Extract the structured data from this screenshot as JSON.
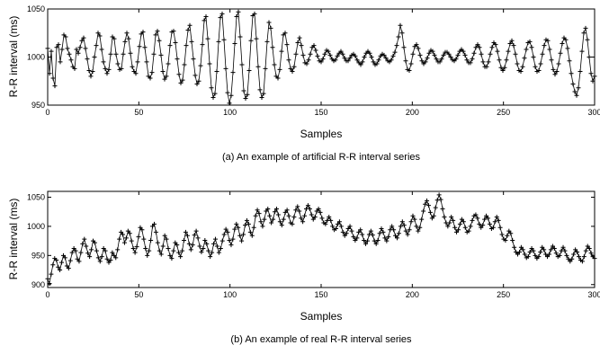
{
  "chart_data": [
    {
      "type": "line",
      "caption": "(a) An example of artificial R-R interval series",
      "xlabel": "Samples",
      "ylabel": "R-R interval (ms)",
      "xlim": [
        0,
        300
      ],
      "ylim": [
        950,
        1050
      ],
      "xticks": [
        "0",
        "50",
        "100",
        "150",
        "200",
        "250",
        "300"
      ],
      "yticks": [
        "950",
        "1000",
        "1050"
      ],
      "marker": "plus",
      "color": "#000000",
      "values": [
        1009,
        983,
        1006,
        978,
        970,
        1010,
        1013,
        995,
        1008,
        1023,
        1021,
        1009,
        1003,
        997,
        990,
        988,
        1008,
        1004,
        1010,
        1017,
        1020,
        1009,
        998,
        986,
        980,
        985,
        1000,
        1012,
        1025,
        1022,
        1008,
        995,
        988,
        983,
        987,
        1003,
        1021,
        1019,
        1003,
        993,
        987,
        988,
        1003,
        1016,
        1025,
        1019,
        1004,
        990,
        985,
        983,
        995,
        1011,
        1024,
        1026,
        1010,
        995,
        980,
        978,
        984,
        1003,
        1023,
        1027,
        1017,
        1002,
        985,
        977,
        980,
        993,
        1012,
        1026,
        1027,
        1015,
        998,
        982,
        973,
        976,
        992,
        1012,
        1028,
        1033,
        1016,
        998,
        981,
        972,
        975,
        991,
        1013,
        1038,
        1042,
        1019,
        993,
        968,
        958,
        962,
        985,
        1016,
        1041,
        1045,
        1018,
        988,
        963,
        952,
        960,
        984,
        1014,
        1042,
        1047,
        1021,
        992,
        965,
        957,
        961,
        986,
        1017,
        1043,
        1045,
        1019,
        990,
        966,
        958,
        962,
        988,
        1016,
        1036,
        1030,
        1010,
        992,
        980,
        978,
        987,
        1006,
        1023,
        1025,
        1013,
        997,
        988,
        985,
        990,
        1003,
        1015,
        1020,
        1012,
        1002,
        994,
        993,
        997,
        1003,
        1010,
        1012,
        1007,
        1001,
        996,
        995,
        998,
        1003,
        1007,
        1006,
        1002,
        998,
        996,
        997,
        1001,
        1004,
        1006,
        1003,
        999,
        996,
        996,
        999,
        1002,
        1003,
        1001,
        997,
        994,
        992,
        995,
        1000,
        1004,
        1006,
        1004,
        1000,
        995,
        992,
        993,
        997,
        1001,
        1003,
        1002,
        999,
        996,
        995,
        997,
        1001,
        1005,
        1012,
        1021,
        1033,
        1025,
        1010,
        996,
        987,
        986,
        993,
        1003,
        1011,
        1013,
        1009,
        1002,
        996,
        993,
        995,
        999,
        1004,
        1007,
        1006,
        1002,
        998,
        995,
        995,
        998,
        1002,
        1005,
        1005,
        1003,
        1000,
        997,
        996,
        998,
        1002,
        1006,
        1008,
        1006,
        1002,
        997,
        994,
        994,
        998,
        1004,
        1010,
        1013,
        1010,
        1003,
        995,
        990,
        990,
        995,
        1003,
        1010,
        1015,
        1013,
        1006,
        997,
        989,
        986,
        989,
        997,
        1006,
        1014,
        1017,
        1012,
        1003,
        993,
        986,
        985,
        990,
        999,
        1008,
        1015,
        1016,
        1010,
        1000,
        990,
        985,
        986,
        993,
        1003,
        1012,
        1018,
        1017,
        1008,
        997,
        987,
        982,
        985,
        993,
        1004,
        1014,
        1020,
        1018,
        1009,
        996,
        983,
        972,
        964,
        960,
        968,
        985,
        1006,
        1025,
        1030,
        1018,
        1000,
        983,
        975,
        980
      ]
    },
    {
      "type": "line",
      "caption": "(b) An example of real R-R interval series",
      "xlabel": "Samples",
      "ylabel": "R-R interval (ms)",
      "xlim": [
        0,
        300
      ],
      "ylim": [
        895,
        1060
      ],
      "xticks": [
        "0",
        "50",
        "100",
        "150",
        "200",
        "250",
        "300"
      ],
      "yticks": [
        "900",
        "950",
        "1000",
        "1050"
      ],
      "marker": "plus",
      "color": "#000000",
      "values": [
        910,
        902,
        918,
        934,
        945,
        942,
        930,
        925,
        938,
        950,
        946,
        932,
        928,
        941,
        955,
        962,
        958,
        944,
        940,
        955,
        970,
        978,
        966,
        954,
        948,
        960,
        975,
        972,
        958,
        946,
        940,
        948,
        962,
        958,
        944,
        938,
        942,
        955,
        950,
        946,
        960,
        978,
        990,
        986,
        972,
        980,
        992,
        988,
        975,
        962,
        955,
        965,
        982,
        998,
        994,
        978,
        962,
        950,
        958,
        976,
        1000,
        1004,
        990,
        972,
        958,
        952,
        966,
        984,
        978,
        962,
        950,
        945,
        958,
        972,
        968,
        955,
        948,
        958,
        976,
        990,
        984,
        970,
        960,
        968,
        985,
        992,
        980,
        966,
        956,
        962,
        976,
        970,
        958,
        948,
        955,
        970,
        978,
        966,
        955,
        962,
        975,
        986,
        995,
        990,
        976,
        968,
        978,
        995,
        1004,
        998,
        984,
        975,
        986,
        1002,
        1010,
        1004,
        990,
        984,
        998,
        1018,
        1028,
        1022,
        1008,
        1000,
        1012,
        1026,
        1030,
        1018,
        1006,
        1012,
        1025,
        1030,
        1020,
        1008,
        1002,
        1012,
        1024,
        1028,
        1018,
        1006,
        1004,
        1016,
        1028,
        1034,
        1026,
        1014,
        1008,
        1018,
        1030,
        1036,
        1030,
        1020,
        1012,
        1016,
        1026,
        1030,
        1024,
        1014,
        1006,
        1004,
        1010,
        1016,
        1010,
        1000,
        994,
        996,
        1004,
        1008,
        1000,
        990,
        984,
        988,
        996,
        1000,
        992,
        982,
        976,
        980,
        990,
        994,
        986,
        976,
        970,
        975,
        986,
        992,
        985,
        975,
        970,
        976,
        988,
        996,
        990,
        980,
        975,
        982,
        994,
        1000,
        994,
        984,
        980,
        988,
        1000,
        1008,
        1002,
        992,
        986,
        994,
        1008,
        1018,
        1012,
        1000,
        992,
        998,
        1012,
        1026,
        1038,
        1044,
        1036,
        1024,
        1014,
        1018,
        1032,
        1045,
        1054,
        1046,
        1030,
        1016,
        1006,
        1000,
        1006,
        1016,
        1010,
        998,
        990,
        994,
        1004,
        1012,
        1008,
        998,
        990,
        992,
        1000,
        1010,
        1018,
        1020,
        1014,
        1004,
        998,
        1002,
        1012,
        1018,
        1014,
        1004,
        996,
        998,
        1008,
        1016,
        1010,
        998,
        986,
        978,
        976,
        984,
        992,
        988,
        976,
        964,
        956,
        952,
        956,
        964,
        960,
        952,
        946,
        948,
        956,
        962,
        958,
        950,
        945,
        948,
        956,
        964,
        960,
        952,
        948,
        952,
        960,
        966,
        962,
        954,
        948,
        950,
        958,
        964,
        958,
        950,
        944,
        940,
        944,
        952,
        960,
        956,
        948,
        942,
        940,
        948,
        958,
        966,
        962,
        954,
        948,
        945
      ]
    }
  ]
}
